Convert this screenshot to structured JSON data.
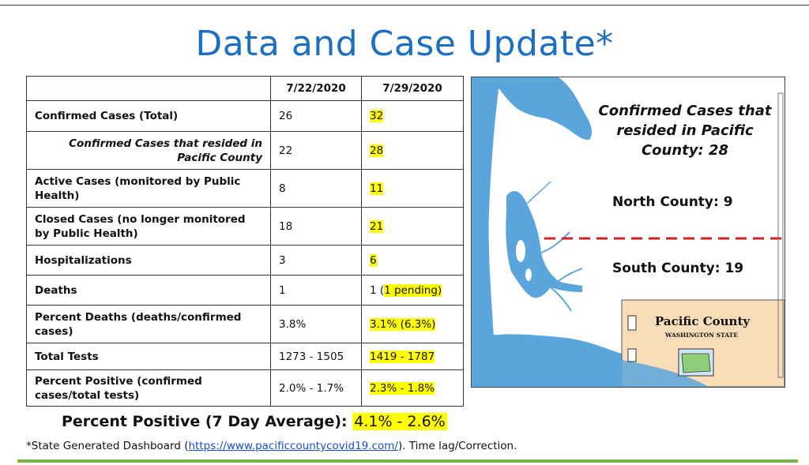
{
  "title": "Data and Case Update*",
  "table": {
    "headers": [
      "",
      "7/22/2020",
      "7/29/2020"
    ],
    "rows": [
      {
        "label": "Confirmed Cases (Total)",
        "v1": "26",
        "v2": "32"
      },
      {
        "label": "Confirmed Cases that resided in Pacific County",
        "v1": "22",
        "v2": "28"
      },
      {
        "label": "Active Cases (monitored by Public Health)",
        "v1": "8",
        "v2": "11"
      },
      {
        "label": "Closed Cases (no longer monitored by Public Health)",
        "v1": "18",
        "v2": "21"
      },
      {
        "label": "Hospitalizations",
        "v1": "3",
        "v2": "6"
      },
      {
        "label": "Deaths",
        "v1": "1",
        "v2_prefix": "1 (",
        "v2_highlight": "1 pending)"
      },
      {
        "label": "Percent Deaths (deaths/confirmed cases)",
        "v1": "3.8%",
        "v2": "3.1% (6.3%)"
      },
      {
        "label": "Total Tests",
        "v1": "1273 - 1505",
        "v2": "1419 - 1787"
      },
      {
        "label": "Percent Positive (confirmed cases/total tests)",
        "v1": "2.0% - 1.7%",
        "v2": "2.3% - 1.8%"
      }
    ]
  },
  "map": {
    "heading": "Confirmed Cases that resided in Pacific County: 28",
    "north": "North County: 9",
    "south": "South County: 19",
    "inset_title": "Pacific County",
    "inset_subtitle": "WASHINGTON STATE",
    "colors": {
      "water": "#5aa6dc",
      "land": "#f8ddb8",
      "divider": "#cc2222"
    }
  },
  "percent_positive": {
    "label": "Percent Positive (7 Day Average):",
    "value": "4.1% - 2.6%"
  },
  "footnote": {
    "prefix": "*State Generated Dashboard (",
    "link": "https://www.pacificcountycovid19.com/",
    "suffix": ").  Time lag/Correction."
  },
  "accent_colors": {
    "title": "#1c6fc2",
    "highlight": "#ffff00",
    "rule": "#7cb342"
  }
}
